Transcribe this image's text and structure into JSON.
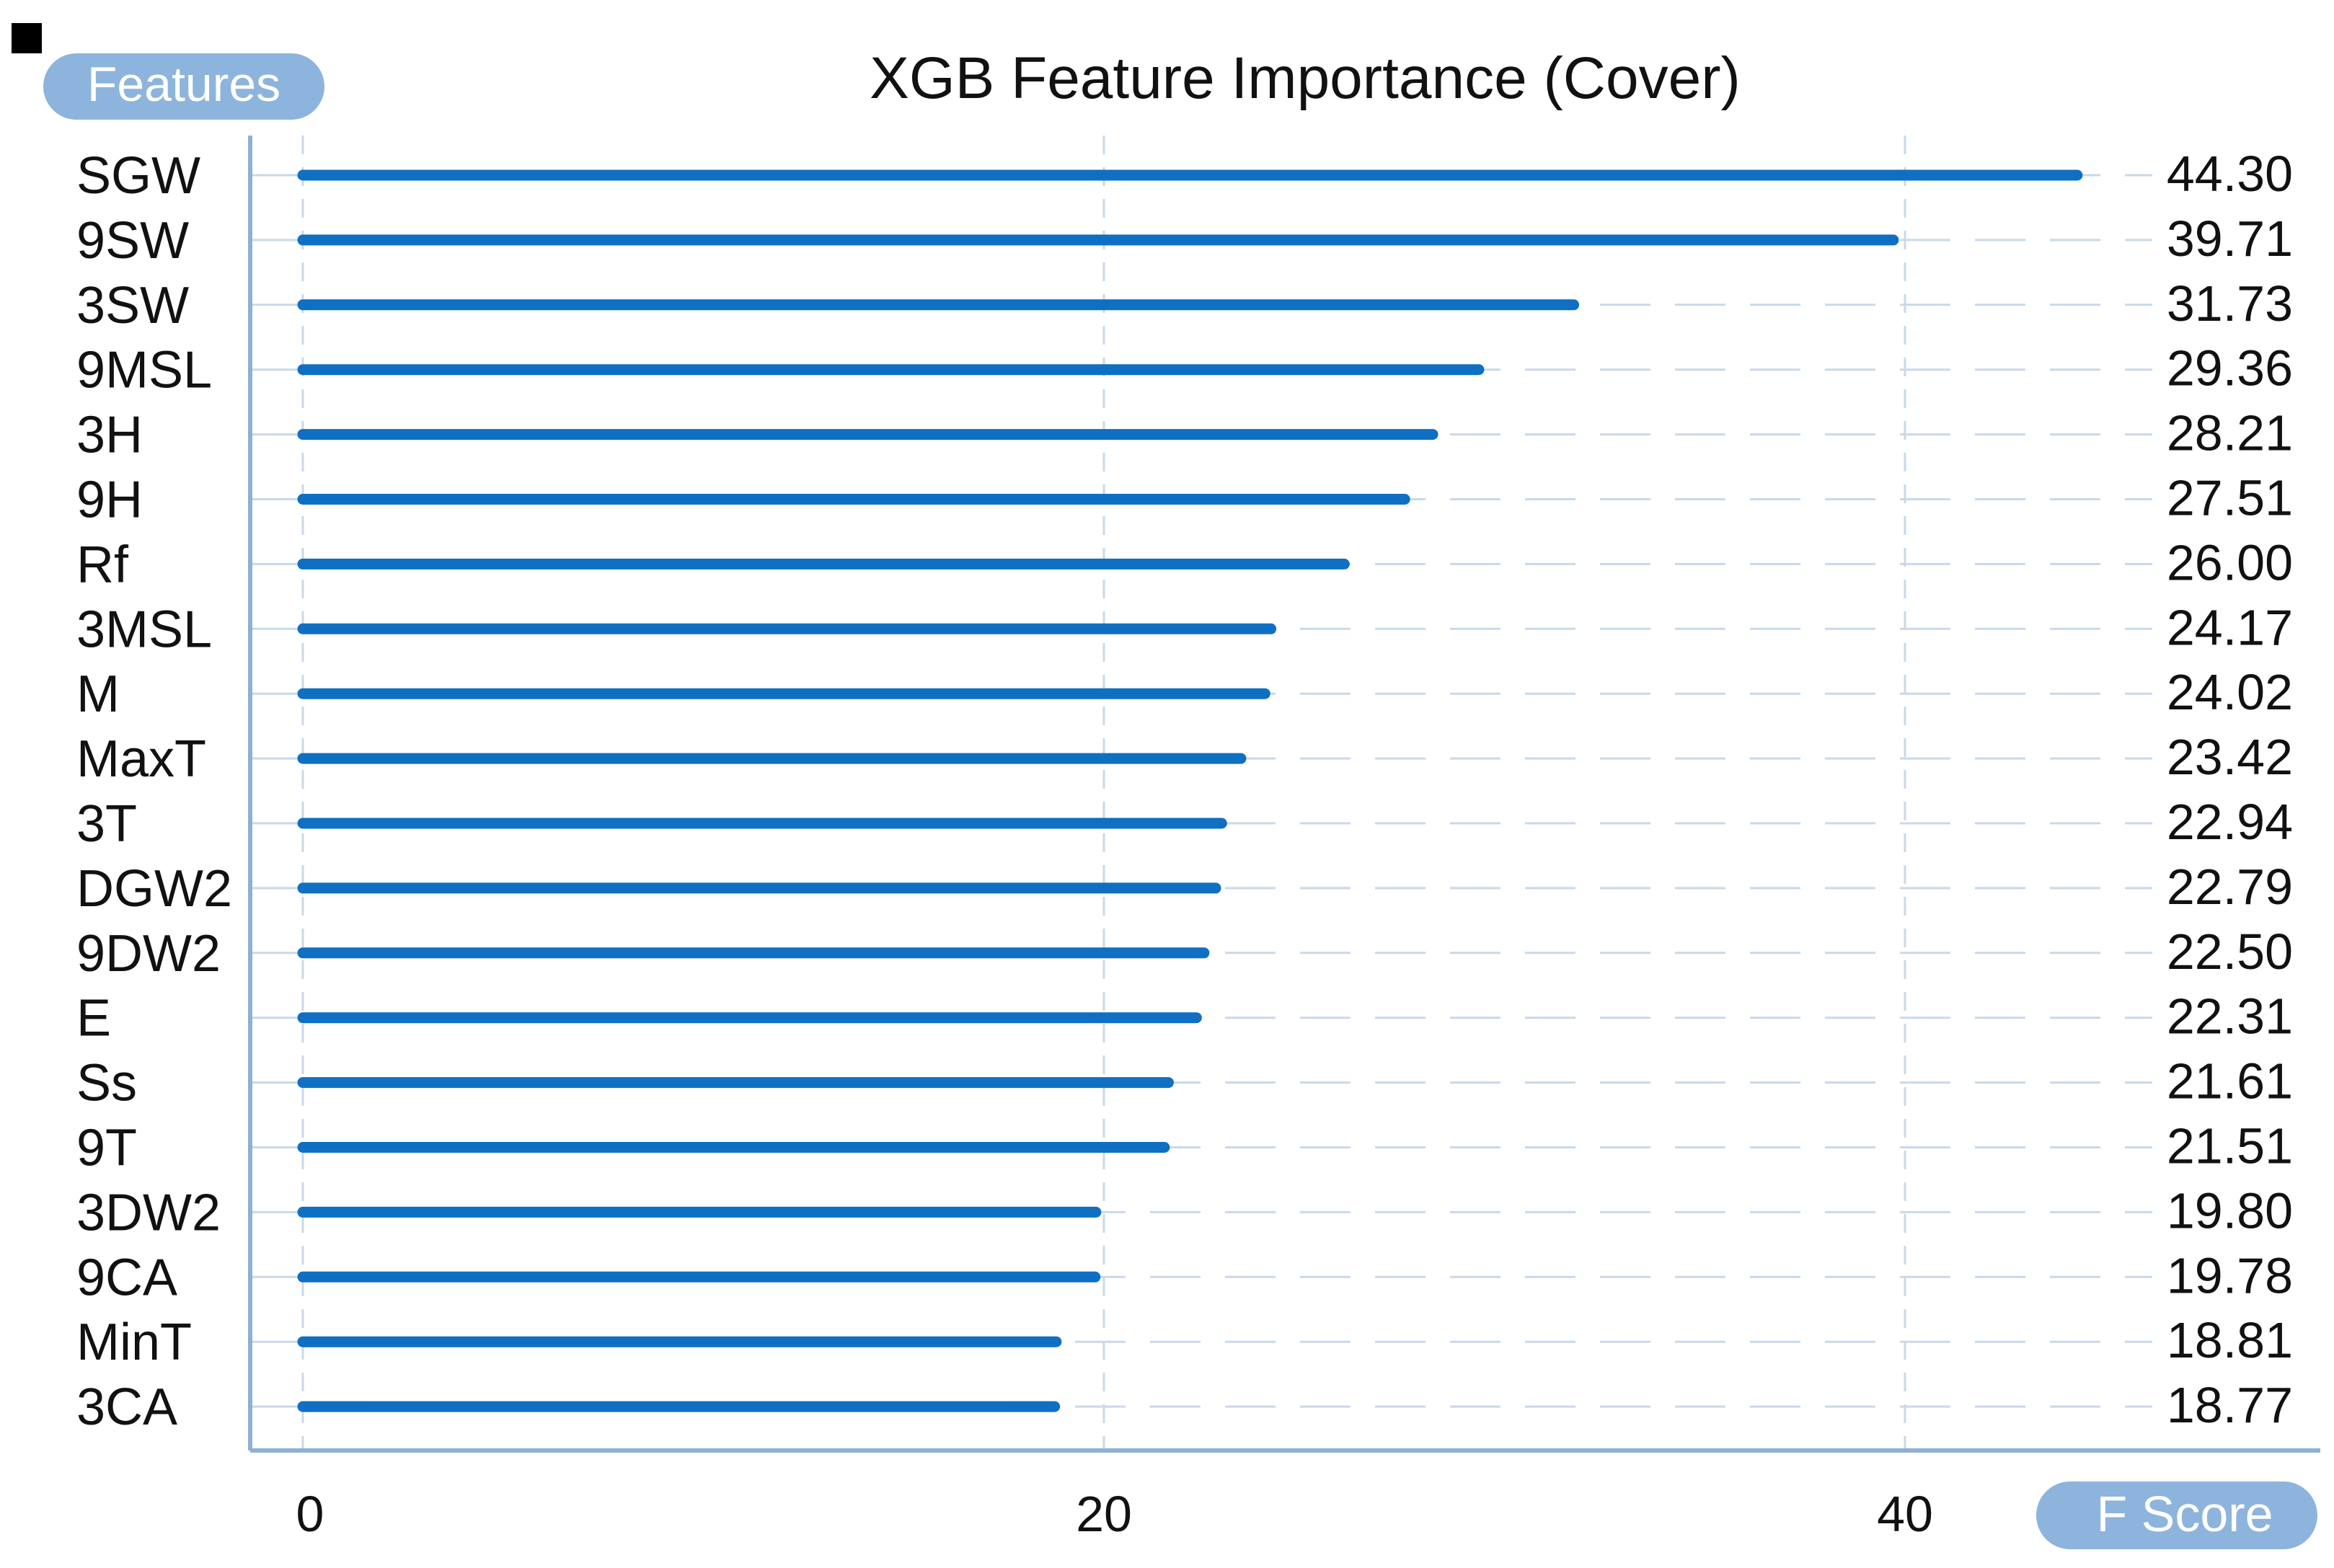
{
  "chart_data": {
    "type": "bar",
    "orientation": "horizontal",
    "title": "XGB Feature Importance (Cover)",
    "ylabel": "Features",
    "xlabel": "F Score",
    "categories": [
      "SGW",
      "9SW",
      "3SW",
      "9MSL",
      "3H",
      "9H",
      "Rf",
      "3MSL",
      "M",
      "MaxT",
      "3T",
      "DGW2",
      "9DW2",
      "E",
      "Ss",
      "9T",
      "3DW2",
      "9CA",
      "MinT",
      "3CA"
    ],
    "values": [
      44.3,
      39.71,
      31.73,
      29.36,
      28.21,
      27.51,
      26.0,
      24.17,
      24.02,
      23.42,
      22.94,
      22.79,
      22.5,
      22.31,
      21.61,
      21.51,
      19.8,
      19.78,
      18.81,
      18.77
    ],
    "value_labels": [
      "44.30",
      "39.71",
      "31.73",
      "29.36",
      "28.21",
      "27.51",
      "26.00",
      "24.17",
      "24.02",
      "23.42",
      "22.94",
      "22.79",
      "22.50",
      "22.31",
      "21.61",
      "21.51",
      "19.80",
      "19.78",
      "18.81",
      "18.77"
    ],
    "x_ticks": [
      0,
      20,
      40
    ],
    "x_tick_labels": [
      "0",
      "20",
      "40"
    ],
    "xlim": [
      -1.3,
      50
    ],
    "grid": true,
    "colors": {
      "bar": "#0f6fc2",
      "grid": "#c9d9ea",
      "axis": "#8fb0d2",
      "pill": "#8db4dc",
      "marker": "#000000"
    }
  }
}
